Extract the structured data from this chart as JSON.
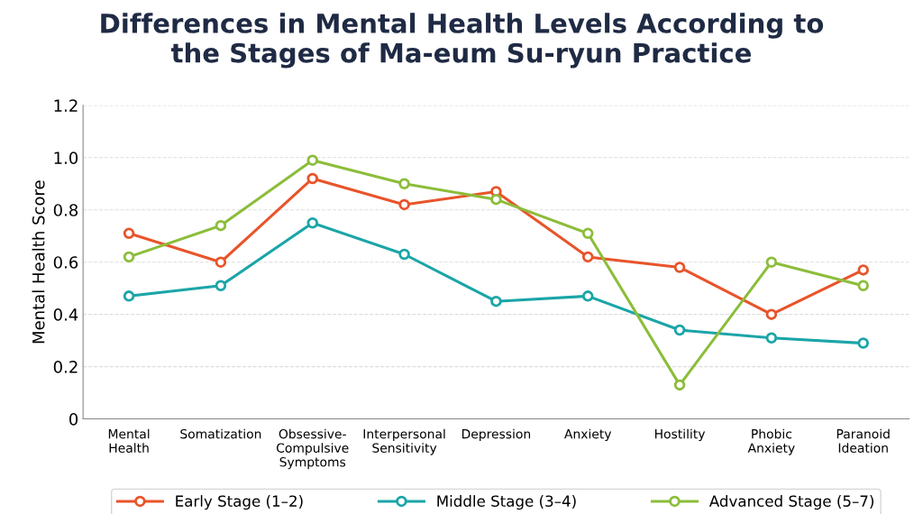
{
  "chart_data": {
    "type": "line",
    "title": "Differences in Mental Health Levels According to\nthe Stages of Ma-eum Su-ryun Practice",
    "ylabel": "Mental Health Score",
    "categories": [
      "Mental\nHealth",
      "Somatization",
      "Obsessive-\nCompulsive\nSymptoms",
      "Interpersonal\nSensitivity",
      "Depression",
      "Anxiety",
      "Hostility",
      "Phobic\nAnxiety",
      "Paranoid\nIdeation"
    ],
    "series": [
      {
        "name": "Early Stage (1–2)",
        "color": "#e8542a",
        "values": [
          0.71,
          0.6,
          0.92,
          0.82,
          0.87,
          0.62,
          0.58,
          0.4,
          0.57
        ]
      },
      {
        "name": "Middle Stage (3–4)",
        "color": "#1ba5a8",
        "values": [
          0.47,
          0.51,
          0.75,
          0.63,
          0.45,
          0.47,
          0.34,
          0.31,
          0.29
        ]
      },
      {
        "name": "Advanced Stage (5–7)",
        "color": "#8cbd3a",
        "values": [
          0.62,
          0.74,
          0.99,
          0.9,
          0.84,
          0.71,
          0.13,
          0.6,
          0.51
        ]
      }
    ],
    "ylim": [
      0,
      1.2
    ],
    "yticks": [
      {
        "value": 0,
        "label": "0"
      },
      {
        "value": 0.2,
        "label": "0.2"
      },
      {
        "value": 0.4,
        "label": "0.4"
      },
      {
        "value": 0.6,
        "label": "0.6"
      },
      {
        "value": 0.8,
        "label": "0.8"
      },
      {
        "value": 1.0,
        "label": "1.0"
      },
      {
        "value": 1.2,
        "label": "1.2"
      }
    ],
    "grid": "y",
    "legend": "bottom",
    "marker": "circle",
    "line_style": "solid"
  }
}
